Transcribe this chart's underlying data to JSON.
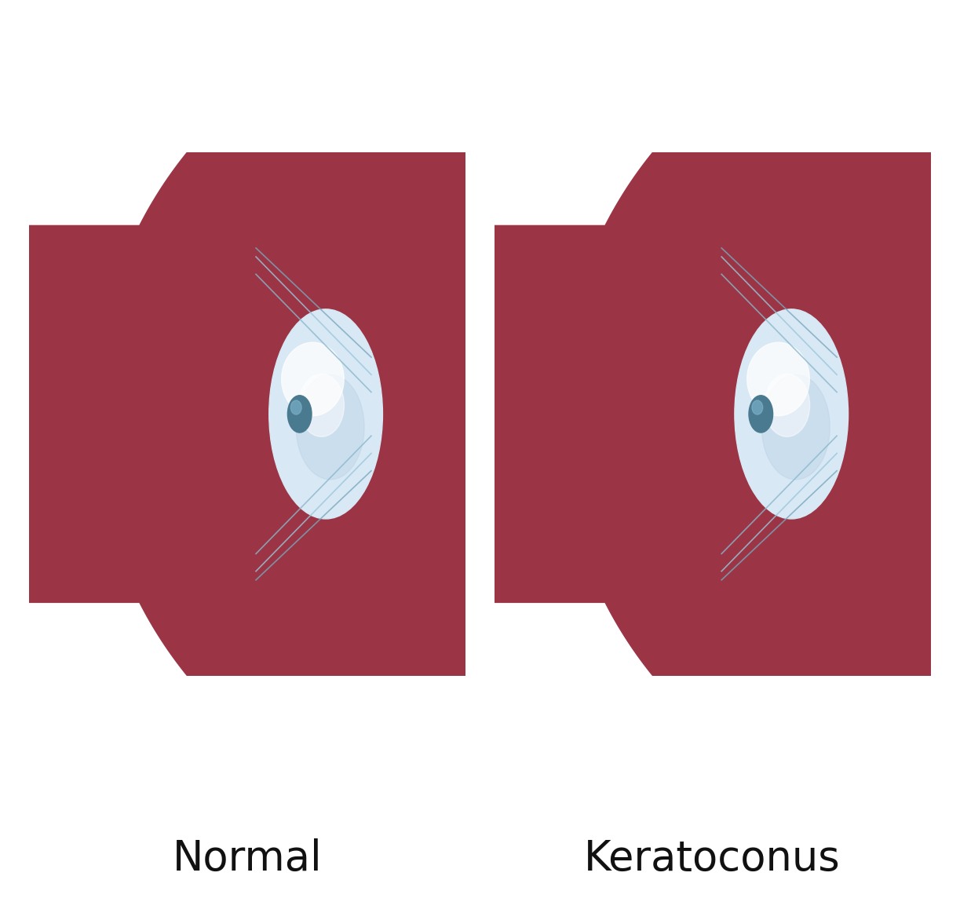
{
  "title_left": "Normal",
  "title_right": "Keratoconus",
  "title_fontsize": 38,
  "title_color": "#111111",
  "background_color": "#ffffff",
  "red_sclera": "#9b3545",
  "red_sclera_dark": "#7a2535",
  "blue_band": "#7fa8c8",
  "blue_band_dark": "#4a6fa0",
  "white_sclera": "#e8eaec",
  "white_sclera_light": "#f5f5f5",
  "iris_color": "#5a8aaa",
  "iris_dark": "#3a6080",
  "cornea_color": "#7aafc8",
  "cornea_light": "#aaccdc",
  "lens_color": "#d8e8f4",
  "lens_light": "#eef5fa",
  "pupil_color": "#4a7a90",
  "pupil_light": "#7ab0c8",
  "ciliary_color": "#8ab8cc",
  "shadow_color": "#6a2535",
  "border_color": "#1a1a7e",
  "box_border": "#2a2a2a"
}
